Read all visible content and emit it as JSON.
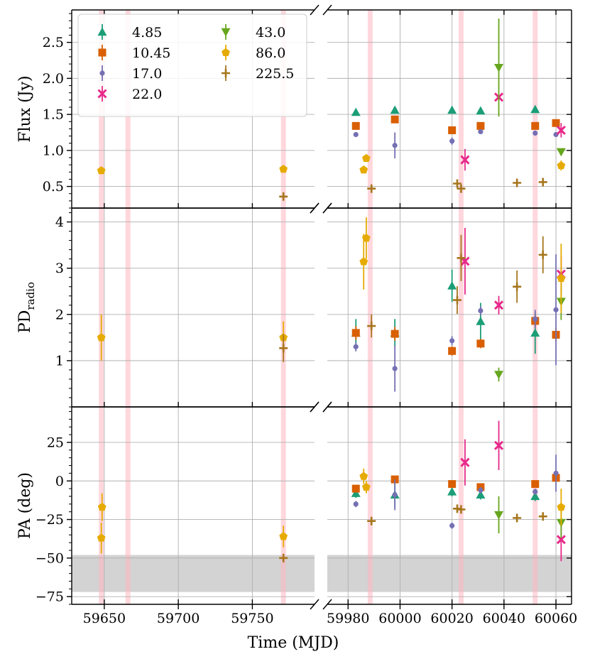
{
  "chart_data": {
    "type": "scatter",
    "x_label": "Time (MJD)",
    "x_segments": [
      {
        "range": [
          59628,
          59792
        ],
        "ticks": [
          59650,
          59700,
          59750
        ]
      },
      {
        "range": [
          59972,
          60066
        ],
        "ticks": [
          59980,
          60000,
          60020,
          60040,
          60060
        ]
      }
    ],
    "panels": [
      {
        "id": "flux",
        "ylabel": "Flux (Jy)",
        "ylim": [
          0.2,
          2.95
        ],
        "yticks": [
          0.5,
          1.0,
          1.5,
          2.0,
          2.5
        ],
        "ytick_labels": [
          "0.5",
          "1.0",
          "1.5",
          "2.0",
          "2.5"
        ]
      },
      {
        "id": "pd",
        "ylabel_main": "PD",
        "ylabel_sub": "radio",
        "ylim": [
          0.0,
          4.3
        ],
        "yticks": [
          1,
          2,
          3,
          4
        ],
        "ytick_labels": [
          "1",
          "2",
          "3",
          "4"
        ]
      },
      {
        "id": "pa",
        "ylabel": "PA (deg)",
        "ylim": [
          -80,
          48
        ],
        "yticks": [
          -75,
          -50,
          -25,
          0,
          25
        ],
        "ytick_labels": [
          "−75",
          "−50",
          "−25",
          "0",
          "25"
        ],
        "shaded_band": [
          -72,
          -48
        ]
      }
    ],
    "highlight_times": [
      59648,
      59666,
      59771,
      59988.5,
      60023.5,
      60052
    ],
    "series": [
      {
        "name": "4.85",
        "color": "#1b9e77",
        "marker": "triangle-up",
        "flux": [
          [
            59983,
            1.53
          ],
          [
            59998,
            1.56
          ],
          [
            60020,
            1.56
          ],
          [
            60031,
            1.55
          ],
          [
            60052,
            1.57
          ]
        ],
        "pd": [
          [
            59983,
            1.6,
            0.3
          ],
          [
            59998,
            1.6,
            0.3
          ],
          [
            60020,
            2.62,
            0.35
          ],
          [
            60031,
            1.85,
            0.4
          ],
          [
            60052,
            1.6,
            0.45
          ]
        ],
        "pa": [
          [
            59983,
            -8,
            3
          ],
          [
            59998,
            -9,
            8
          ],
          [
            60020,
            -7,
            3
          ],
          [
            60031,
            -9,
            3
          ],
          [
            60052,
            -10,
            3
          ]
        ]
      },
      {
        "name": "10.45",
        "color": "#d95f02",
        "marker": "square",
        "flux": [
          [
            59983,
            1.34
          ],
          [
            59998,
            1.43
          ],
          [
            60020,
            1.28
          ],
          [
            60031,
            1.34
          ],
          [
            60052,
            1.34
          ],
          [
            60060,
            1.38
          ]
        ],
        "pd": [
          [
            59983,
            1.6,
            0.15
          ],
          [
            59998,
            1.58,
            0.15
          ],
          [
            60020,
            1.21,
            0.1
          ],
          [
            60031,
            1.37,
            0.1
          ],
          [
            60052,
            1.86,
            0.15
          ],
          [
            60060,
            1.56,
            0.15
          ]
        ],
        "pa": [
          [
            59983,
            -5,
            2
          ],
          [
            59998,
            1,
            2
          ],
          [
            60020,
            -2,
            2
          ],
          [
            60031,
            -4,
            2
          ],
          [
            60052,
            -2,
            2
          ],
          [
            60060,
            2,
            2
          ]
        ]
      },
      {
        "name": "17.0",
        "color": "#7570b3",
        "marker": "circle-small",
        "flux": [
          [
            59983,
            1.22
          ],
          [
            59998,
            1.07,
            0.18
          ],
          [
            60020,
            1.13,
            0.05
          ],
          [
            60031,
            1.26
          ],
          [
            60052,
            1.24
          ],
          [
            60060,
            1.22
          ]
        ],
        "pd": [
          [
            59983,
            1.3,
            0.1
          ],
          [
            59998,
            0.83,
            0.5
          ],
          [
            60020,
            1.43,
            0.1
          ],
          [
            60031,
            2.08,
            0.1
          ],
          [
            60052,
            1.9,
            0.2
          ],
          [
            60060,
            2.1,
            1.2
          ]
        ],
        "pa": [
          [
            59983,
            -15,
            2
          ],
          [
            59998,
            -9,
            10
          ],
          [
            60020,
            -29,
            2
          ],
          [
            60031,
            -6,
            2
          ],
          [
            60052,
            -7,
            2
          ],
          [
            60060,
            5,
            12
          ]
        ]
      },
      {
        "name": "22.0",
        "color": "#e7298a",
        "marker": "x",
        "flux": [
          [
            60025,
            0.87,
            0.15
          ],
          [
            60038,
            1.74
          ],
          [
            60062,
            1.28,
            0.1
          ]
        ],
        "pd": [
          [
            60025,
            3.15,
            0.72
          ],
          [
            60038,
            2.2,
            0.2
          ],
          [
            60062,
            2.87,
            0.4
          ]
        ],
        "pa": [
          [
            60025,
            12,
            15
          ],
          [
            60038,
            23,
            16
          ],
          [
            60062,
            -38,
            14
          ]
        ]
      },
      {
        "name": "43.0",
        "color": "#66a61e",
        "marker": "triangle-down",
        "flux": [
          [
            60038,
            2.15,
            0.68
          ],
          [
            60062,
            0.98
          ]
        ],
        "pd": [
          [
            60038,
            0.7,
            0.15
          ],
          [
            60062,
            2.28,
            0.4
          ]
        ],
        "pa": [
          [
            60038,
            -22,
            12
          ],
          [
            60062,
            -27,
            10
          ]
        ]
      },
      {
        "name": "86.0",
        "color": "#e6ab02",
        "marker": "pentagon",
        "flux": [
          [
            59648,
            0.72
          ],
          [
            59771,
            0.74
          ],
          [
            59986,
            0.73
          ],
          [
            59987,
            0.89
          ],
          [
            60062,
            0.79,
            0.07
          ]
        ],
        "pd": [
          [
            59648,
            1.5,
            0.5
          ],
          [
            59771,
            1.5,
            0.35
          ],
          [
            59986,
            3.14,
            0.6
          ],
          [
            59987,
            3.65,
            0.45
          ],
          [
            60062,
            2.78,
            0.75
          ]
        ],
        "pa": [
          [
            59648,
            -37,
            10
          ],
          [
            59648.5,
            -17,
            9
          ],
          [
            59771,
            -36,
            7
          ],
          [
            59986,
            3,
            5
          ],
          [
            59987,
            -4,
            4
          ],
          [
            60062,
            -17,
            12
          ]
        ]
      },
      {
        "name": "225.5",
        "color": "#a6761d",
        "marker": "plus",
        "flux": [
          [
            59771,
            0.36
          ],
          [
            59989,
            0.47
          ],
          [
            60022,
            0.54
          ],
          [
            60023.5,
            0.47
          ],
          [
            60045,
            0.55
          ],
          [
            60055,
            0.56
          ]
        ],
        "pd": [
          [
            59771,
            1.27,
            0.3
          ],
          [
            59989,
            1.75,
            0.25
          ],
          [
            60022,
            2.31,
            0.3
          ],
          [
            60023.5,
            3.22,
            0.5
          ],
          [
            60045,
            2.6,
            0.35
          ],
          [
            60055,
            3.29,
            0.4
          ]
        ],
        "pa": [
          [
            59771,
            -50,
            2
          ],
          [
            59989,
            -26,
            2
          ],
          [
            60022,
            -18,
            2
          ],
          [
            60023.5,
            -18.5,
            2
          ],
          [
            60045,
            -24,
            2
          ],
          [
            60055,
            -23,
            2
          ]
        ]
      }
    ]
  }
}
